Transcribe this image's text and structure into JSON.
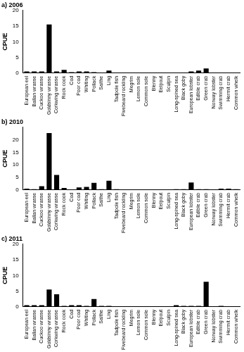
{
  "chart_data": [
    {
      "type": "bar",
      "title": "a) 2006",
      "y_label": "CPUE",
      "categories": [
        "European eel",
        "Ballan wrasse",
        "Cuckoo wrasse",
        "Goldsinny wrasse",
        "Corkwing wrasse",
        "Rock cook",
        "Cod",
        "Poor cod",
        "Whiting",
        "Pollack",
        "Saithe",
        "Ling",
        "Tadpole fish",
        "Fivebeard rockling",
        "Megrim",
        "Lemon sole",
        "Common sole",
        "Blenny",
        "Eelpout",
        "Sculpin",
        "Long-spined sea",
        "Black goby",
        "European lobster",
        "Edible crab",
        "Green crab",
        "Norway lobster",
        "Swimming crab",
        "Hermit crab",
        "Common whelk"
      ],
      "values": [
        0.5,
        0.5,
        0.5,
        15.5,
        0.5,
        1,
        0.3,
        0.5,
        0.5,
        0.3,
        0,
        0.8,
        0,
        0,
        0,
        0.2,
        0,
        0,
        0,
        0,
        0,
        0,
        0.5,
        0.8,
        1.5,
        0,
        0,
        0,
        0
      ],
      "color": "#000000",
      "ylim": [
        0,
        20
      ],
      "yticks": [
        0,
        5,
        10,
        15,
        20
      ],
      "grid": false
    },
    {
      "type": "bar",
      "title": "b) 2010",
      "y_label": "CPUE",
      "categories": [
        "European eel",
        "Ballan wrasse",
        "Cuckoo wrasse",
        "Goldsinny wrasse",
        "Corkwing wrasse",
        "Rock cook",
        "Cod",
        "Poor cod",
        "Whiting",
        "Pollack",
        "Saithe",
        "Ling",
        "Tadpole fish",
        "Fivebeard rockling",
        "Megrim",
        "Lemon sole",
        "Common sole",
        "Blenny",
        "Eelpout",
        "Sculpin",
        "Long-spined sea",
        "Black goby",
        "European lobster",
        "Edible crab",
        "Green crab",
        "Norway lobster",
        "Swimming crab",
        "Hermit crab",
        "Common whelk"
      ],
      "values": [
        0.5,
        0.3,
        1.5,
        22.7,
        6,
        0.8,
        0,
        1,
        1.2,
        2.8,
        0.3,
        3.7,
        0.3,
        0,
        0.2,
        0.2,
        0.2,
        0.2,
        0,
        0,
        0.3,
        0.3,
        3,
        0.3,
        0.3,
        0,
        0.5,
        0.5,
        0.3
      ],
      "color": "#000000",
      "ylim": [
        0,
        25
      ],
      "yticks": [
        0,
        5,
        10,
        15,
        20
      ],
      "grid": false
    },
    {
      "type": "bar",
      "title": "c) 2011",
      "y_label": "CPUE",
      "categories": [
        "European eel",
        "Ballan wrasse",
        "Cuckoo wrasse",
        "Goldsinny wrasse",
        "Corkwing wrasse",
        "Rock cook",
        "Cod",
        "Poor cod",
        "Whiting",
        "Pollack",
        "Saithe",
        "Ling",
        "Tadpole fish",
        "Fivebeard rockling",
        "Megrim",
        "Lemon sole",
        "Common sole",
        "Blenny",
        "Eelpout",
        "Sculpin",
        "Long-spined sea",
        "Black goby",
        "European lobster",
        "Edible crab",
        "Green crab",
        "Norway lobster",
        "Swimming crab",
        "Hermit crab",
        "Common whelk"
      ],
      "values": [
        0.5,
        0.5,
        0.5,
        5.5,
        4,
        0.3,
        0.5,
        0.5,
        0.3,
        2.5,
        0.3,
        0.3,
        0,
        0,
        0,
        0,
        0,
        0,
        0.2,
        0,
        0.5,
        0.3,
        0.3,
        0.3,
        8,
        0.2,
        0.3,
        0.2,
        0
      ],
      "color": "#000000",
      "ylim": [
        0,
        20
      ],
      "yticks": [
        0,
        5,
        10,
        15,
        20
      ],
      "grid": false
    }
  ]
}
